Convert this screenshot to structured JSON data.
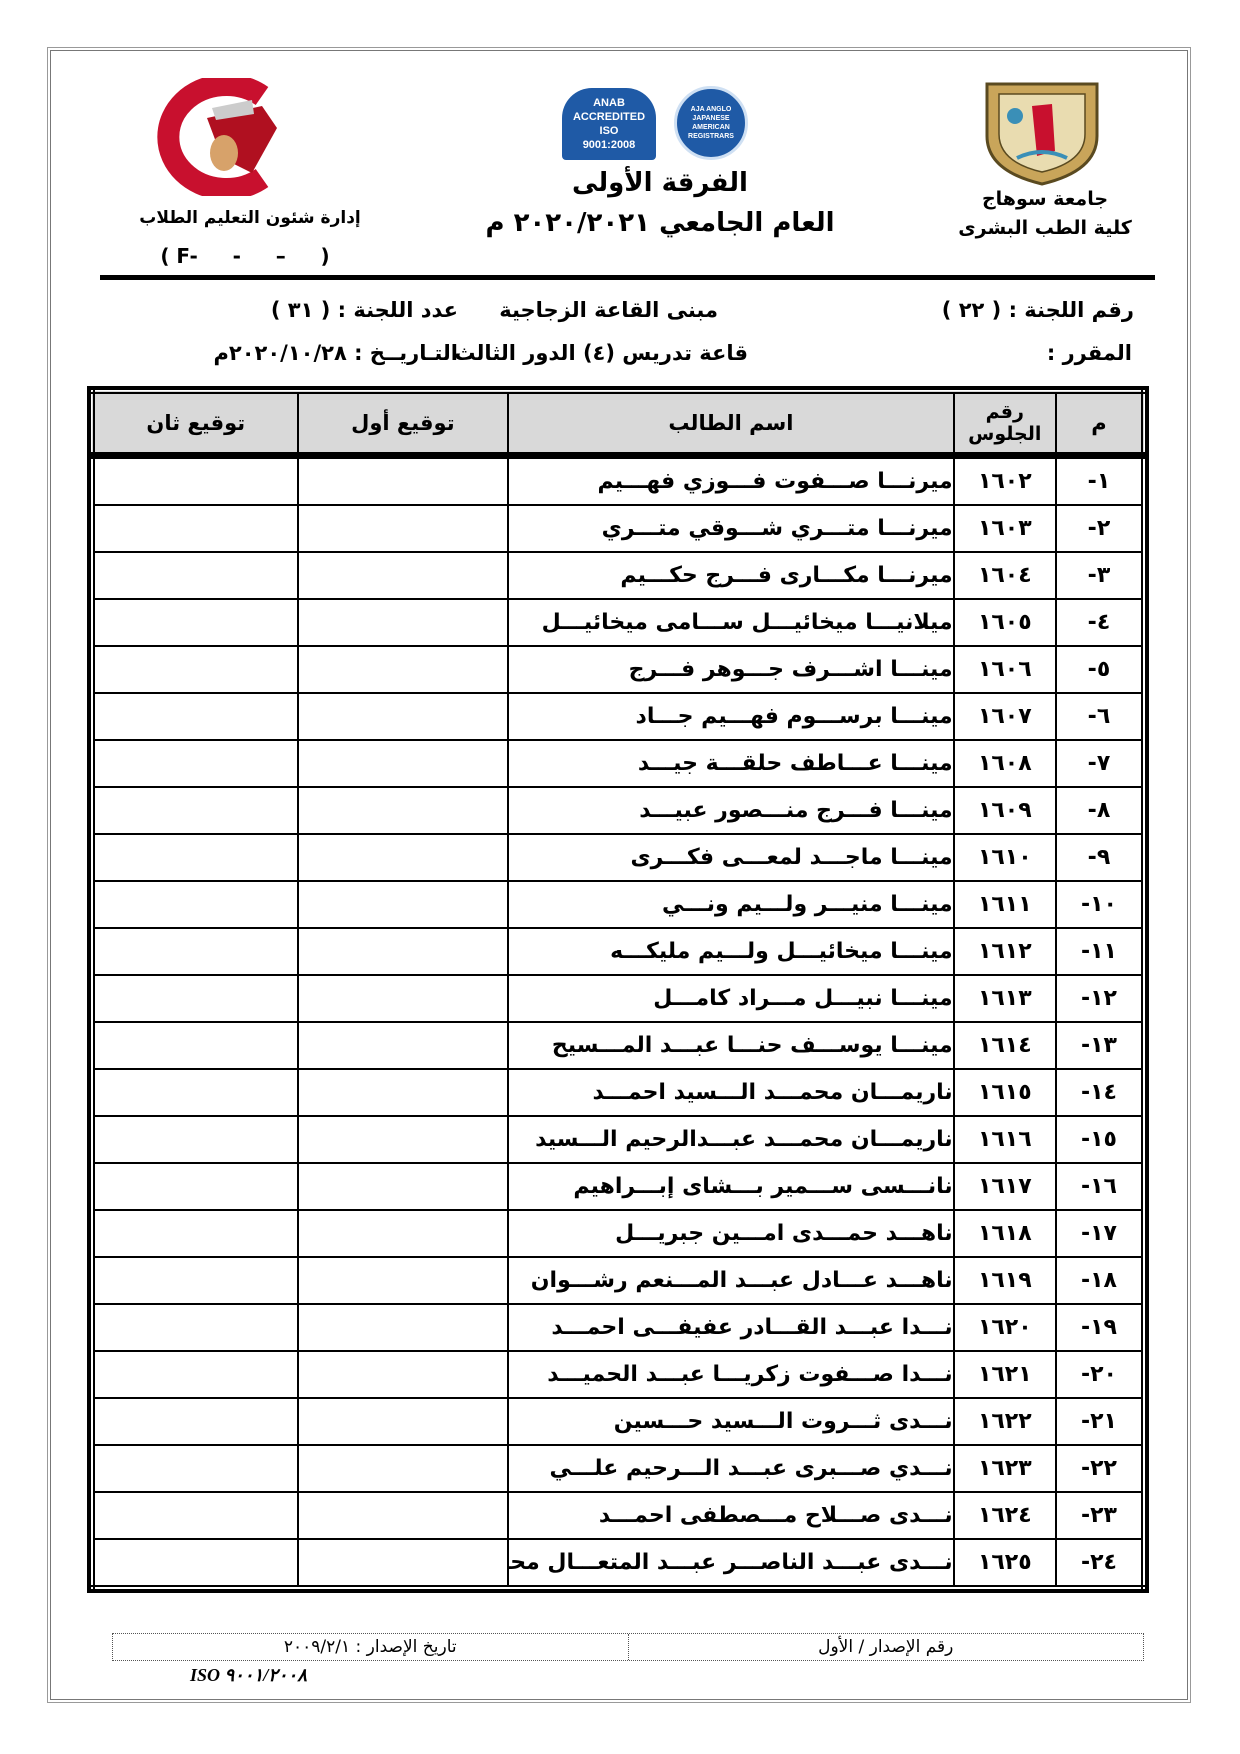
{
  "header": {
    "right_university": "جامعة سوهاج",
    "right_faculty": "كلية الطب البشرى",
    "center_year_group": "الفرقة الأولى",
    "center_academic_year": "العام الجامعي ٢٠٢٠/٢٠٢١ م",
    "left_department": "إدارة شئون التعليم الطلاب",
    "left_form_code": "( F-     -     –     )",
    "left_logo_text": "جامعة سوهاج - كلية الطب",
    "anab_logo_text": "ANAB ACCREDITED ISO 9001:2008",
    "aja_logo_text": "AJA ANGLO JAPANESE AMERICAN REGISTRARS"
  },
  "info": {
    "committee_number": "رقم اللجنة : ( ٢٢ )",
    "building": "مبنى القاعة الزجاجية",
    "committee_count": "عدد اللجنة : ( ٣١ )",
    "course": "المقرر :",
    "hall": "قاعة تدريس (٤) الدور الثالث",
    "date": "التـاريــخ : ٢٠٢٠/١٠/٢٨م"
  },
  "table": {
    "headers": {
      "index": "م",
      "seat": "رقم الجلوس",
      "name": "اسم الطالب",
      "sig1": "توقيع أول",
      "sig2": "توقيع ثان"
    },
    "rows": [
      {
        "index": "١-",
        "seat": "١٦٠٢",
        "name": "ميرنـــا صـــفوت فـــوزي فهـــيم"
      },
      {
        "index": "٢-",
        "seat": "١٦٠٣",
        "name": "ميرنـــا متـــري شـــوقي متـــري"
      },
      {
        "index": "٣-",
        "seat": "١٦٠٤",
        "name": "ميرنـــا مكـــارى فـــرج حكـــيم"
      },
      {
        "index": "٤-",
        "seat": "١٦٠٥",
        "name": "ميلانيـــا ميخائيـــل ســـامى ميخائيـــل"
      },
      {
        "index": "٥-",
        "seat": "١٦٠٦",
        "name": "مينـــا اشـــرف جـــوهر فـــرج"
      },
      {
        "index": "٦-",
        "seat": "١٦٠٧",
        "name": "مينـــا برســـوم فهـــيم جـــاد"
      },
      {
        "index": "٧-",
        "seat": "١٦٠٨",
        "name": "مينـــا عـــاطف حلقـــة جيـــد"
      },
      {
        "index": "٨-",
        "seat": "١٦٠٩",
        "name": "مينـــا فـــرج منـــصور عبيـــد"
      },
      {
        "index": "٩-",
        "seat": "١٦١٠",
        "name": "مينـــا ماجـــد لمعـــى فكـــرى"
      },
      {
        "index": "١٠-",
        "seat": "١٦١١",
        "name": "مينـــا منيـــر ولـــيم ونـــي"
      },
      {
        "index": "١١-",
        "seat": "١٦١٢",
        "name": "مينـــا ميخائيـــل ولـــيم مليكـــه"
      },
      {
        "index": "١٢-",
        "seat": "١٦١٣",
        "name": "مينـــا نبيـــل مـــراد  كامـــل"
      },
      {
        "index": "١٣-",
        "seat": "١٦١٤",
        "name": "مينـــا يوســـف حنـــا عبـــد المـــسيح"
      },
      {
        "index": "١٤-",
        "seat": "١٦١٥",
        "name": "ناريمـــان محمـــد الـــسيد احمـــد"
      },
      {
        "index": "١٥-",
        "seat": "١٦١٦",
        "name": "ناريمـــان محمـــد عبـــدالرحيم الـــسيد"
      },
      {
        "index": "١٦-",
        "seat": "١٦١٧",
        "name": "نانـــسى ســـمير بـــشاى إبـــراهيم"
      },
      {
        "index": "١٧-",
        "seat": "١٦١٨",
        "name": "ناهـــد حمـــدى امـــين جبريـــل"
      },
      {
        "index": "١٨-",
        "seat": "١٦١٩",
        "name": "ناهـــد عـــادل عبـــد المـــنعم رشـــوان"
      },
      {
        "index": "١٩-",
        "seat": "١٦٢٠",
        "name": "نـــدا  عبـــد القـــادر عفيفـــى احمـــد"
      },
      {
        "index": "٢٠-",
        "seat": "١٦٢١",
        "name": "نـــدا صـــفوت زكريـــا عبـــد الحميـــد"
      },
      {
        "index": "٢١-",
        "seat": "١٦٢٢",
        "name": "نـــدى ثـــروت الـــسيد حـــسين"
      },
      {
        "index": "٢٢-",
        "seat": "١٦٢٣",
        "name": "نـــدي صـــبرى عبـــد الـــرحيم  علـــي"
      },
      {
        "index": "٢٣-",
        "seat": "١٦٢٤",
        "name": "نـــدى صـــلاح مـــصطفى احمـــد"
      },
      {
        "index": "٢٤-",
        "seat": "١٦٢٥",
        "name": "نـــدى عبـــد الناصـــر عبـــد المتعـــال محمـــد"
      }
    ]
  },
  "footer": {
    "issue_number": "رقم الإصدار / الأول",
    "issue_date": "تاريخ الإصدار : ٢٠٠٩/٢/١",
    "iso": "ISO ٩٠٠١/٢٠٠٨"
  },
  "colors": {
    "header_fill": "#d9d9d9",
    "logo_red": "#c8102e",
    "anab_blue": "#1f5aa6",
    "emblem_gold": "#c9a55a"
  }
}
